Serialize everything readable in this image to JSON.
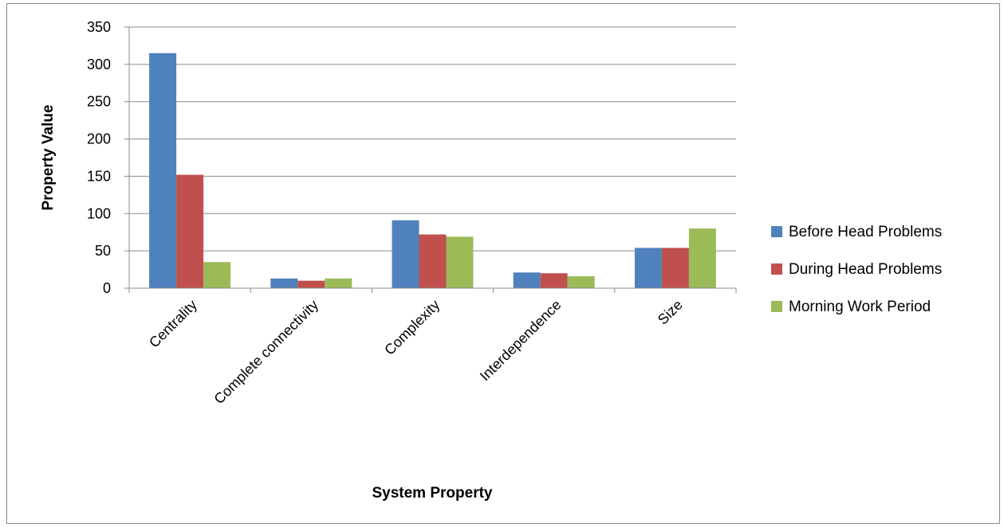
{
  "chart_data": {
    "type": "bar",
    "title": "",
    "xlabel": "System Property",
    "ylabel": "Property Value",
    "ylim": [
      0,
      350
    ],
    "yticks": [
      0,
      50,
      100,
      150,
      200,
      250,
      300,
      350
    ],
    "grid": true,
    "legend_position": "right",
    "categories": [
      "Centrality",
      "Complete connectivity",
      "Complexity",
      "Interdependence",
      "Size"
    ],
    "series": [
      {
        "name": "Before Head Problems",
        "color": "#4F81BD",
        "values": [
          315,
          13,
          91,
          21,
          54
        ]
      },
      {
        "name": "During Head Problems",
        "color": "#C0504D",
        "values": [
          152,
          10,
          72,
          20,
          54
        ]
      },
      {
        "name": "Morning Work Period",
        "color": "#9BBB59",
        "values": [
          35,
          13,
          69,
          16,
          80
        ]
      }
    ]
  }
}
